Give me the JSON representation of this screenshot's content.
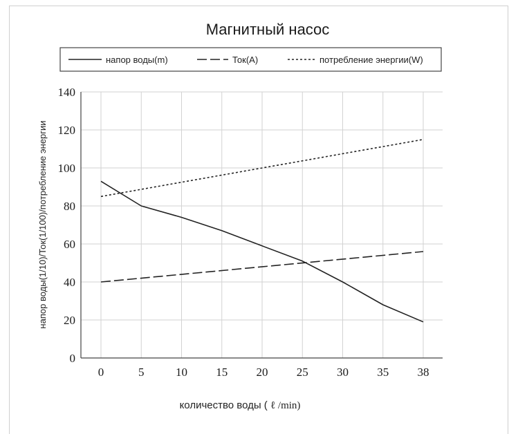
{
  "chart_data": {
    "type": "line",
    "title": "Магнитный насос",
    "xlabel_prefix": "количество воды ( ",
    "xlabel_unit": "ℓ /min)",
    "ylabel": "напор воды(1/10)/Ток(1/100)/потребление энергии",
    "x_ticks": [
      0,
      5,
      10,
      15,
      20,
      25,
      30,
      35,
      38
    ],
    "y_ticks": [
      0,
      20,
      40,
      60,
      80,
      100,
      120,
      140
    ],
    "ylim": [
      0,
      140
    ],
    "grid": true,
    "legend_position": "top",
    "series": [
      {
        "name": "напор воды(m)",
        "style": "solid",
        "x": [
          0,
          5,
          10,
          15,
          20,
          25,
          30,
          35,
          38
        ],
        "y": [
          93,
          80,
          74,
          67,
          59,
          51,
          40,
          28,
          19
        ]
      },
      {
        "name": "Ток(A)",
        "style": "dashed",
        "x": [
          0,
          38
        ],
        "y": [
          40,
          56
        ]
      },
      {
        "name": "потребление энергии(W)",
        "style": "dotted",
        "x": [
          0,
          38
        ],
        "y": [
          85,
          115
        ]
      }
    ]
  }
}
